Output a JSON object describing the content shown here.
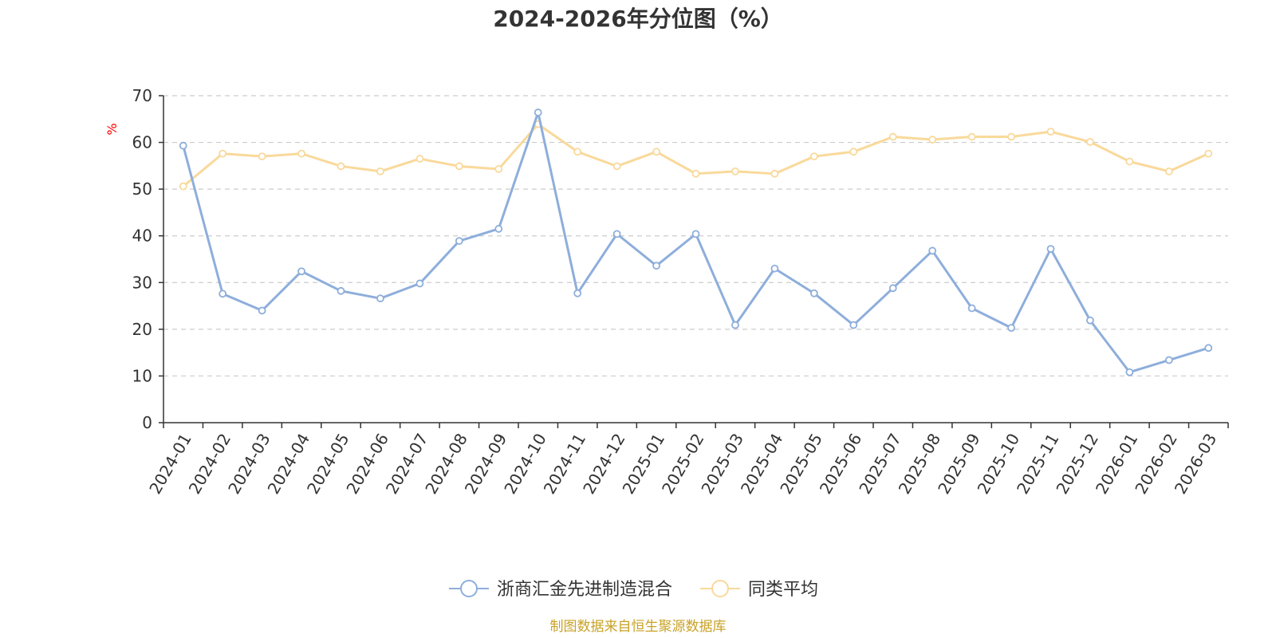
{
  "chart_data": {
    "type": "line",
    "title": "2024-2026年分位图（%）",
    "ylabel": "%",
    "ylim": [
      0,
      70
    ],
    "yticks": [
      0,
      10,
      20,
      30,
      40,
      50,
      60,
      70
    ],
    "grid": true,
    "legend_position": "bottom",
    "categories": [
      "2024-01",
      "2024-02",
      "2024-03",
      "2024-04",
      "2024-05",
      "2024-06",
      "2024-07",
      "2024-08",
      "2024-09",
      "2024-10",
      "2024-11",
      "2024-12",
      "2025-01",
      "2025-02",
      "2025-03",
      "2025-04",
      "2025-05",
      "2025-06",
      "2025-07",
      "2025-08",
      "2025-09",
      "2025-10",
      "2025-11",
      "2025-12",
      "2026-01",
      "2026-02",
      "2026-03"
    ],
    "series": [
      {
        "name": "浙商汇金先进制造混合",
        "color": "#8eaedb",
        "values": [
          59.3,
          27.6,
          24.0,
          32.4,
          28.2,
          26.6,
          29.8,
          38.9,
          41.5,
          66.4,
          27.7,
          40.4,
          33.6,
          40.4,
          20.9,
          33.0,
          27.7,
          20.9,
          28.8,
          36.8,
          24.5,
          20.3,
          37.2,
          21.9,
          10.8,
          13.4,
          16.0
        ]
      },
      {
        "name": "同类平均",
        "color": "#f9d99b",
        "values": [
          50.6,
          57.6,
          57.0,
          57.6,
          54.9,
          53.8,
          56.5,
          54.9,
          54.3,
          63.9,
          58.0,
          54.9,
          58.0,
          53.3,
          53.8,
          53.3,
          57.0,
          58.0,
          61.2,
          60.6,
          61.2,
          61.2,
          62.3,
          60.1,
          55.9,
          53.8,
          57.6
        ]
      }
    ],
    "source": "制图数据来自恒生聚源数据库"
  }
}
